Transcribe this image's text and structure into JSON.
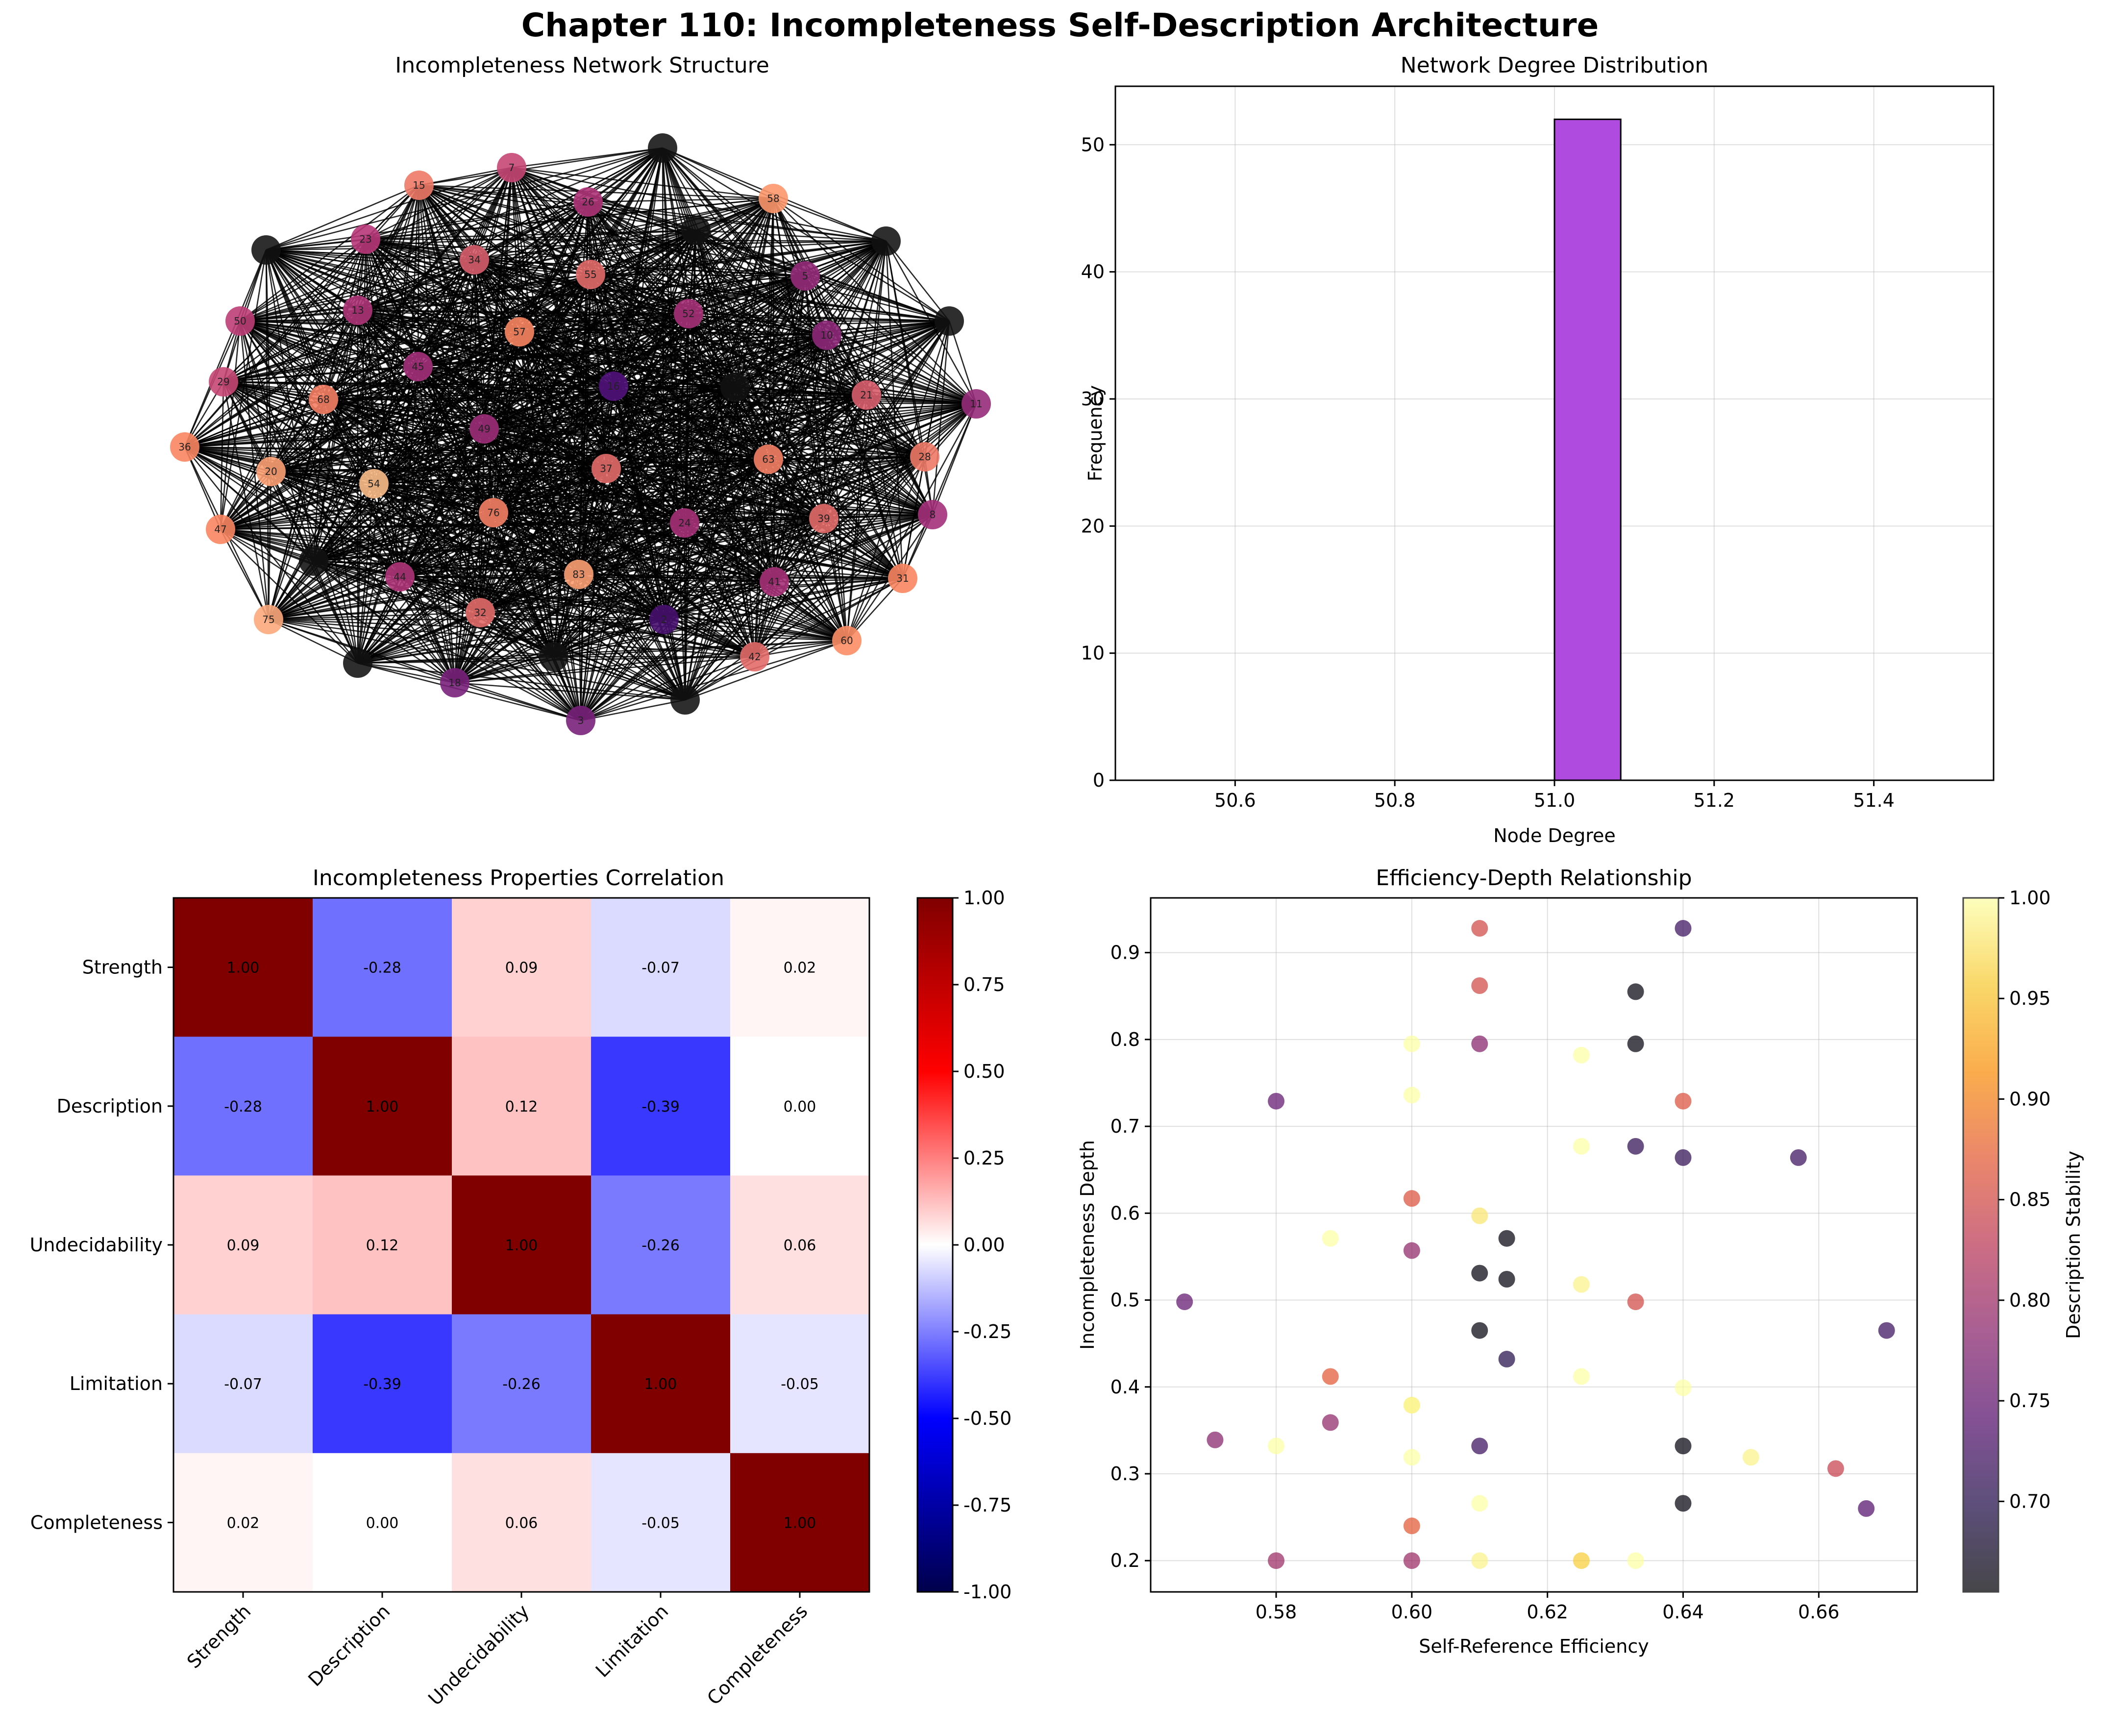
{
  "suptitle": "Chapter 110: Incompleteness Self-Description Architecture",
  "chart_data": [
    {
      "id": "network",
      "type": "network",
      "title": "Incompleteness Network Structure",
      "node_labels": [
        "15",
        "7",
        "26",
        "58",
        "23",
        "34",
        "55",
        "5",
        "50",
        "13",
        "57",
        "52",
        "10",
        "29",
        "68",
        "45",
        "16",
        "21",
        "11",
        "36",
        "49",
        "37",
        "63",
        "28",
        "20",
        "54",
        "76",
        "24",
        "39",
        "8",
        "47",
        "44",
        "83",
        "41",
        "31",
        "75",
        "32",
        "2",
        "60",
        "42",
        "18",
        "3"
      ],
      "unlabeled_node_count": 10,
      "description_stability_cmap": "magma"
    },
    {
      "id": "degree",
      "type": "bar",
      "title": "Network Degree Distribution",
      "xlabel": "Node Degree",
      "ylabel": "Frequency",
      "xlim": [
        50.45,
        51.55
      ],
      "ylim": [
        0,
        54.6
      ],
      "xticks": [
        "50.6",
        "50.8",
        "51.0",
        "51.2",
        "51.4"
      ],
      "xtick_values": [
        50.6,
        50.8,
        51.0,
        51.2,
        51.4
      ],
      "yticks": [
        "0",
        "10",
        "20",
        "30",
        "40",
        "50"
      ],
      "ytick_values": [
        0,
        10,
        20,
        30,
        40,
        50
      ],
      "bins": [
        {
          "x0": 51.0,
          "x1": 51.083,
          "count": 52
        }
      ],
      "bar_color": "#b04bdf"
    },
    {
      "id": "heatmap",
      "type": "heatmap",
      "title": "Incompleteness Properties Correlation",
      "labels": [
        "Strength",
        "Description",
        "Undecidability",
        "Limitation",
        "Completeness"
      ],
      "matrix": [
        [
          1.0,
          -0.28,
          0.09,
          -0.07,
          0.02
        ],
        [
          -0.28,
          1.0,
          0.12,
          -0.39,
          0.0
        ],
        [
          0.09,
          0.12,
          1.0,
          -0.26,
          0.06
        ],
        [
          -0.07,
          -0.39,
          -0.26,
          1.0,
          -0.05
        ],
        [
          0.02,
          0.0,
          0.06,
          -0.05,
          1.0
        ]
      ],
      "cell_text": [
        [
          "1.00",
          "-0.28",
          "0.09",
          "-0.07",
          "0.02"
        ],
        [
          "-0.28",
          "1.00",
          "0.12",
          "-0.39",
          "0.00"
        ],
        [
          "0.09",
          "0.12",
          "1.00",
          "-0.26",
          "0.06"
        ],
        [
          "-0.07",
          "-0.39",
          "-0.26",
          "1.00",
          "-0.05"
        ],
        [
          "0.02",
          "0.00",
          "0.06",
          "-0.05",
          "1.00"
        ]
      ],
      "vmin": -1,
      "vmax": 1,
      "cmap": "seismic",
      "colorbar_ticks": [
        "-1.00",
        "-0.75",
        "-0.50",
        "-0.25",
        "0.00",
        "0.25",
        "0.50",
        "0.75",
        "1.00"
      ]
    },
    {
      "id": "scatter",
      "type": "scatter",
      "title": "Efficiency-Depth Relationship",
      "xlabel": "Self-Reference Efficiency",
      "ylabel": "Incompleteness Depth",
      "colorbar_label": "Description Stability",
      "xlim": [
        0.5615,
        0.6745
      ],
      "ylim": [
        0.164,
        0.963
      ],
      "xticks": [
        "0.58",
        "0.60",
        "0.62",
        "0.64",
        "0.66"
      ],
      "xtick_values": [
        0.58,
        0.6,
        0.62,
        0.64,
        0.66
      ],
      "yticks": [
        "0.2",
        "0.3",
        "0.4",
        "0.5",
        "0.6",
        "0.7",
        "0.8",
        "0.9"
      ],
      "ytick_values": [
        0.2,
        0.3,
        0.4,
        0.5,
        0.6,
        0.7,
        0.8,
        0.9
      ],
      "clim": [
        0.655,
        1.0
      ],
      "colorbar_ticks": [
        "0.70",
        "0.75",
        "0.80",
        "0.85",
        "0.90",
        "0.95",
        "1.00"
      ],
      "colorbar_tick_values": [
        0.7,
        0.75,
        0.8,
        0.85,
        0.9,
        0.95,
        1.0
      ],
      "cmap": "inferno",
      "points": [
        {
          "x": 0.61,
          "y": 0.928,
          "c": 0.85
        },
        {
          "x": 0.64,
          "y": 0.928,
          "c": 0.72
        },
        {
          "x": 0.61,
          "y": 0.862,
          "c": 0.85
        },
        {
          "x": 0.633,
          "y": 0.855,
          "c": 0.66
        },
        {
          "x": 0.6,
          "y": 0.795,
          "c": 1.0
        },
        {
          "x": 0.61,
          "y": 0.795,
          "c": 0.78
        },
        {
          "x": 0.633,
          "y": 0.795,
          "c": 0.66
        },
        {
          "x": 0.625,
          "y": 0.782,
          "c": 1.0
        },
        {
          "x": 0.6,
          "y": 0.736,
          "c": 1.0
        },
        {
          "x": 0.58,
          "y": 0.729,
          "c": 0.75
        },
        {
          "x": 0.64,
          "y": 0.729,
          "c": 0.86
        },
        {
          "x": 0.625,
          "y": 0.677,
          "c": 1.0
        },
        {
          "x": 0.633,
          "y": 0.677,
          "c": 0.71
        },
        {
          "x": 0.64,
          "y": 0.664,
          "c": 0.71
        },
        {
          "x": 0.657,
          "y": 0.664,
          "c": 0.72
        },
        {
          "x": 0.6,
          "y": 0.617,
          "c": 0.86
        },
        {
          "x": 0.61,
          "y": 0.597,
          "c": 0.98
        },
        {
          "x": 0.588,
          "y": 0.571,
          "c": 1.0
        },
        {
          "x": 0.614,
          "y": 0.571,
          "c": 0.66
        },
        {
          "x": 0.6,
          "y": 0.557,
          "c": 0.79
        },
        {
          "x": 0.61,
          "y": 0.531,
          "c": 0.66
        },
        {
          "x": 0.614,
          "y": 0.524,
          "c": 0.66
        },
        {
          "x": 0.625,
          "y": 0.518,
          "c": 0.99
        },
        {
          "x": 0.5665,
          "y": 0.498,
          "c": 0.75
        },
        {
          "x": 0.633,
          "y": 0.498,
          "c": 0.85
        },
        {
          "x": 0.61,
          "y": 0.465,
          "c": 0.66
        },
        {
          "x": 0.67,
          "y": 0.465,
          "c": 0.72
        },
        {
          "x": 0.614,
          "y": 0.432,
          "c": 0.7
        },
        {
          "x": 0.588,
          "y": 0.412,
          "c": 0.87
        },
        {
          "x": 0.625,
          "y": 0.412,
          "c": 1.0
        },
        {
          "x": 0.64,
          "y": 0.399,
          "c": 1.0
        },
        {
          "x": 0.6,
          "y": 0.379,
          "c": 0.96
        },
        {
          "x": 0.6,
          "y": 0.379,
          "c": 1.0
        },
        {
          "x": 0.588,
          "y": 0.359,
          "c": 0.79
        },
        {
          "x": 0.571,
          "y": 0.339,
          "c": 0.78
        },
        {
          "x": 0.58,
          "y": 0.332,
          "c": 1.0
        },
        {
          "x": 0.61,
          "y": 0.332,
          "c": 0.72
        },
        {
          "x": 0.64,
          "y": 0.332,
          "c": 0.66
        },
        {
          "x": 0.6,
          "y": 0.319,
          "c": 1.0
        },
        {
          "x": 0.65,
          "y": 0.319,
          "c": 0.99
        },
        {
          "x": 0.6625,
          "y": 0.306,
          "c": 0.84
        },
        {
          "x": 0.61,
          "y": 0.266,
          "c": 1.0
        },
        {
          "x": 0.64,
          "y": 0.266,
          "c": 0.66
        },
        {
          "x": 0.667,
          "y": 0.26,
          "c": 0.74
        },
        {
          "x": 0.6,
          "y": 0.24,
          "c": 0.87
        },
        {
          "x": 0.58,
          "y": 0.2,
          "c": 0.8
        },
        {
          "x": 0.6,
          "y": 0.2,
          "c": 0.8
        },
        {
          "x": 0.61,
          "y": 0.2,
          "c": 0.99
        },
        {
          "x": 0.625,
          "y": 0.2,
          "c": 0.96
        },
        {
          "x": 0.633,
          "y": 0.2,
          "c": 1.0
        }
      ]
    }
  ]
}
